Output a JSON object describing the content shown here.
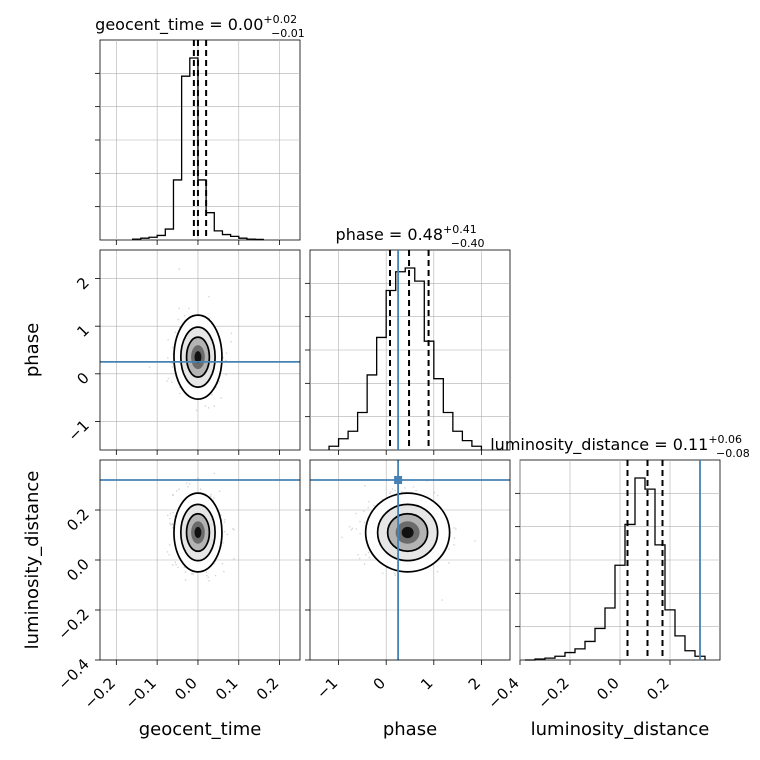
{
  "chart_data": {
    "type": "corner",
    "parameters": [
      "geocent_time",
      "phase",
      "luminosity_distance"
    ],
    "titles": [
      {
        "param": "geocent_time",
        "median": "0.00",
        "plus": "+0.02",
        "minus": "−0.01"
      },
      {
        "param": "phase",
        "median": "0.48",
        "plus": "+0.41",
        "minus": "−0.40"
      },
      {
        "param": "luminosity_distance",
        "median": "0.11",
        "plus": "+0.06",
        "minus": "−0.08"
      }
    ],
    "ranges": {
      "geocent_time": [
        -0.24,
        0.25
      ],
      "phase": [
        -1.6,
        2.6
      ],
      "luminosity_distance": [
        -0.4,
        0.4
      ]
    },
    "ticks": {
      "geocent_time": [
        "−0.2",
        "−0.1",
        "0.0",
        "0.1",
        "0.2"
      ],
      "phase": [
        "−1",
        "0",
        "1",
        "2"
      ],
      "luminosity_distance": [
        "−0.4",
        "−0.2",
        "0.0",
        "0.2"
      ]
    },
    "tick_values": {
      "geocent_time": [
        -0.2,
        -0.1,
        0.0,
        0.1,
        0.2
      ],
      "phase": [
        -1,
        0,
        1,
        2
      ],
      "luminosity_distance": [
        -0.4,
        -0.2,
        0.0,
        0.2
      ]
    },
    "quantiles": {
      "geocent_time": [
        -0.01,
        0.0,
        0.02
      ],
      "phase": [
        0.08,
        0.48,
        0.89
      ],
      "luminosity_distance": [
        0.03,
        0.11,
        0.17
      ]
    },
    "truths": {
      "geocent_time": null,
      "phase": 0.25,
      "luminosity_distance": 0.32
    },
    "hist": {
      "geocent_time": {
        "edges": [
          -0.16,
          -0.14,
          -0.12,
          -0.1,
          -0.08,
          -0.06,
          -0.04,
          -0.02,
          0.0,
          0.02,
          0.04,
          0.06,
          0.08,
          0.1,
          0.12,
          0.14,
          0.16
        ],
        "counts": [
          0.005,
          0.01,
          0.015,
          0.025,
          0.06,
          0.33,
          0.9,
          1.0,
          0.33,
          0.15,
          0.05,
          0.03,
          0.02,
          0.01,
          0.005,
          0.003
        ]
      },
      "phase": {
        "edges": [
          -1.2,
          -1.0,
          -0.8,
          -0.6,
          -0.4,
          -0.2,
          0.0,
          0.2,
          0.4,
          0.6,
          0.8,
          1.0,
          1.2,
          1.4,
          1.6,
          1.8,
          2.0
        ],
        "counts": [
          0.02,
          0.06,
          0.1,
          0.2,
          0.4,
          0.6,
          0.85,
          0.95,
          0.97,
          0.9,
          0.58,
          0.38,
          0.2,
          0.1,
          0.05,
          0.02
        ]
      },
      "luminosity_distance": {
        "edges": [
          -0.38,
          -0.34,
          -0.3,
          -0.26,
          -0.22,
          -0.18,
          -0.14,
          -0.1,
          -0.06,
          -0.02,
          0.02,
          0.06,
          0.1,
          0.14,
          0.18,
          0.22,
          0.26,
          0.3,
          0.34
        ],
        "counts": [
          0.0,
          0.005,
          0.01,
          0.02,
          0.04,
          0.06,
          0.1,
          0.17,
          0.28,
          0.51,
          0.73,
          0.98,
          0.92,
          0.62,
          0.27,
          0.13,
          0.05,
          0.02
        ]
      }
    },
    "contour_centers": {
      "phase|geocent_time": [
        0.0,
        0.35
      ],
      "luminosity_distance|geocent_time": [
        0.0,
        0.11
      ],
      "luminosity_distance|phase": [
        0.45,
        0.11
      ]
    }
  },
  "colors": {
    "truth": "#4682b4",
    "hist": "#000000",
    "grid": "#b0b0b0",
    "scatter": "#888888"
  }
}
